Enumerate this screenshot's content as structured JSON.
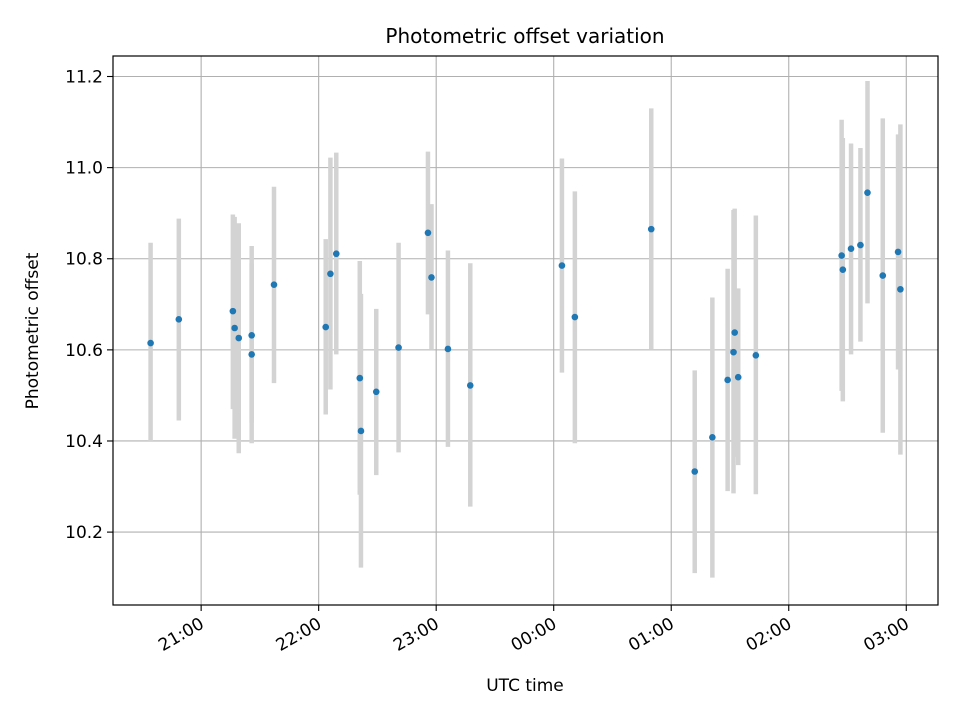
{
  "chart_data": {
    "type": "scatter",
    "title": "Photometric offset variation",
    "xlabel": "UTC time",
    "ylabel": "Photometric offset",
    "x_unit": "hours since 21:00",
    "xlim": [
      -0.75,
      6.27
    ],
    "ylim": [
      10.04,
      11.245
    ],
    "x_ticks": [
      {
        "value": 0,
        "label": "21:00"
      },
      {
        "value": 1,
        "label": "22:00"
      },
      {
        "value": 2,
        "label": "23:00"
      },
      {
        "value": 3,
        "label": "00:00"
      },
      {
        "value": 4,
        "label": "01:00"
      },
      {
        "value": 5,
        "label": "02:00"
      },
      {
        "value": 6,
        "label": "03:00"
      }
    ],
    "y_ticks": [
      {
        "value": 10.2,
        "label": "10.2"
      },
      {
        "value": 10.4,
        "label": "10.4"
      },
      {
        "value": 10.6,
        "label": "10.6"
      },
      {
        "value": 10.8,
        "label": "10.8"
      },
      {
        "value": 11.0,
        "label": "11.0"
      },
      {
        "value": 11.2,
        "label": "11.2"
      }
    ],
    "grid": true,
    "colors": {
      "point": "#1f77b4",
      "errorbar": "#d3d3d3",
      "grid": "#b0b0b0",
      "axes": "#000000"
    },
    "series": [
      {
        "name": "offset",
        "points": [
          {
            "x": -0.43,
            "y": 10.615,
            "lo": 10.4,
            "hi": 10.835
          },
          {
            "x": -0.19,
            "y": 10.667,
            "lo": 10.445,
            "hi": 10.888
          },
          {
            "x": 0.27,
            "y": 10.685,
            "lo": 10.47,
            "hi": 10.897
          },
          {
            "x": 0.285,
            "y": 10.648,
            "lo": 10.405,
            "hi": 10.892
          },
          {
            "x": 0.32,
            "y": 10.626,
            "lo": 10.373,
            "hi": 10.878
          },
          {
            "x": 0.43,
            "y": 10.59,
            "lo": 10.395,
            "hi": 10.79
          },
          {
            "x": 0.43,
            "y": 10.632,
            "lo": 10.44,
            "hi": 10.828
          },
          {
            "x": 0.62,
            "y": 10.743,
            "lo": 10.527,
            "hi": 10.958
          },
          {
            "x": 1.06,
            "y": 10.65,
            "lo": 10.458,
            "hi": 10.843
          },
          {
            "x": 1.1,
            "y": 10.767,
            "lo": 10.513,
            "hi": 11.022
          },
          {
            "x": 1.15,
            "y": 10.811,
            "lo": 10.59,
            "hi": 11.033
          },
          {
            "x": 1.35,
            "y": 10.538,
            "lo": 10.282,
            "hi": 10.795
          },
          {
            "x": 1.36,
            "y": 10.422,
            "lo": 10.122,
            "hi": 10.723
          },
          {
            "x": 1.49,
            "y": 10.508,
            "lo": 10.325,
            "hi": 10.69
          },
          {
            "x": 1.68,
            "y": 10.605,
            "lo": 10.375,
            "hi": 10.835
          },
          {
            "x": 1.93,
            "y": 10.857,
            "lo": 10.678,
            "hi": 11.035
          },
          {
            "x": 1.96,
            "y": 10.759,
            "lo": 10.602,
            "hi": 10.92
          },
          {
            "x": 2.1,
            "y": 10.602,
            "lo": 10.387,
            "hi": 10.818
          },
          {
            "x": 2.29,
            "y": 10.522,
            "lo": 10.256,
            "hi": 10.79
          },
          {
            "x": 3.07,
            "y": 10.785,
            "lo": 10.55,
            "hi": 11.02
          },
          {
            "x": 3.18,
            "y": 10.672,
            "lo": 10.395,
            "hi": 10.948
          },
          {
            "x": 3.83,
            "y": 10.865,
            "lo": 10.602,
            "hi": 11.13
          },
          {
            "x": 4.2,
            "y": 10.333,
            "lo": 10.11,
            "hi": 10.555
          },
          {
            "x": 4.35,
            "y": 10.408,
            "lo": 10.1,
            "hi": 10.715
          },
          {
            "x": 4.48,
            "y": 10.534,
            "lo": 10.29,
            "hi": 10.778
          },
          {
            "x": 4.53,
            "y": 10.595,
            "lo": 10.285,
            "hi": 10.907
          },
          {
            "x": 4.54,
            "y": 10.638,
            "lo": 10.365,
            "hi": 10.91
          },
          {
            "x": 4.57,
            "y": 10.54,
            "lo": 10.347,
            "hi": 10.735
          },
          {
            "x": 4.72,
            "y": 10.588,
            "lo": 10.283,
            "hi": 10.895
          },
          {
            "x": 5.45,
            "y": 10.807,
            "lo": 10.51,
            "hi": 11.105
          },
          {
            "x": 5.46,
            "y": 10.776,
            "lo": 10.487,
            "hi": 11.065
          },
          {
            "x": 5.53,
            "y": 10.822,
            "lo": 10.59,
            "hi": 11.053
          },
          {
            "x": 5.61,
            "y": 10.83,
            "lo": 10.618,
            "hi": 11.043
          },
          {
            "x": 5.67,
            "y": 10.945,
            "lo": 10.702,
            "hi": 11.19
          },
          {
            "x": 5.8,
            "y": 10.763,
            "lo": 10.418,
            "hi": 11.108
          },
          {
            "x": 5.93,
            "y": 10.815,
            "lo": 10.557,
            "hi": 11.073
          },
          {
            "x": 5.95,
            "y": 10.733,
            "lo": 10.37,
            "hi": 11.095
          }
        ]
      }
    ]
  }
}
